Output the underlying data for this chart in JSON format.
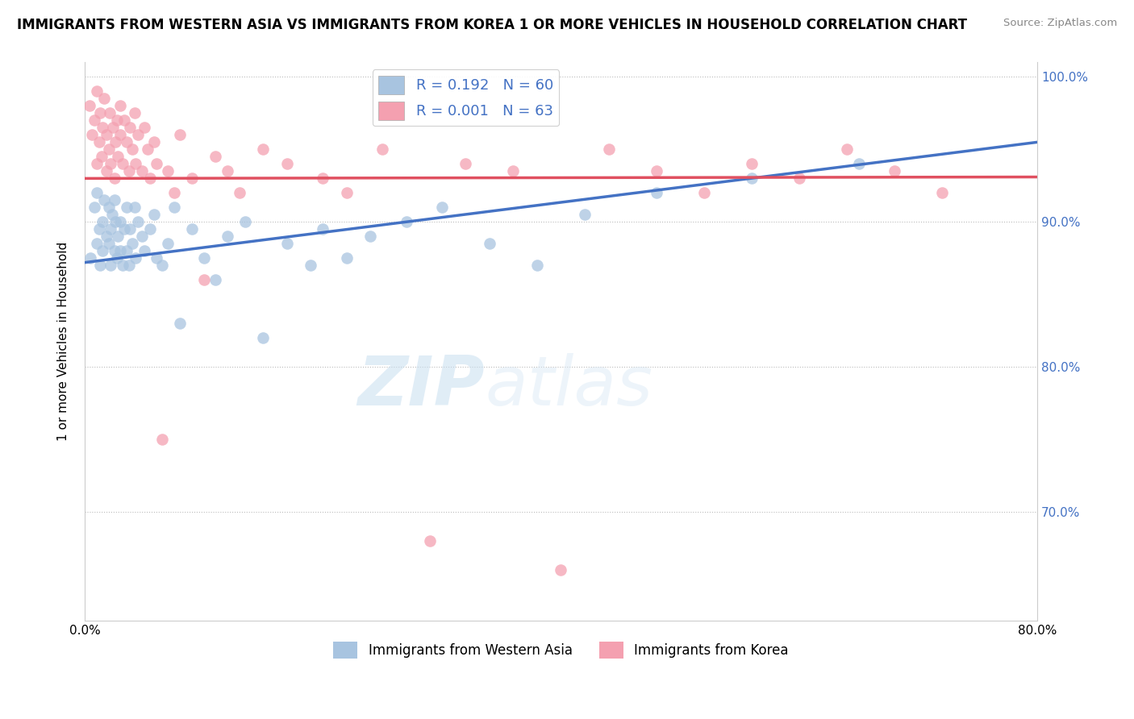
{
  "title": "IMMIGRANTS FROM WESTERN ASIA VS IMMIGRANTS FROM KOREA 1 OR MORE VEHICLES IN HOUSEHOLD CORRELATION CHART",
  "source": "Source: ZipAtlas.com",
  "ylabel": "1 or more Vehicles in Household",
  "x_min": 0.0,
  "x_max": 0.8,
  "y_min": 0.625,
  "y_max": 1.01,
  "y_ticks": [
    0.7,
    0.8,
    0.9,
    1.0
  ],
  "y_tick_labels": [
    "70.0%",
    "80.0%",
    "90.0%",
    "100.0%"
  ],
  "x_ticks": [
    0.0,
    0.1,
    0.2,
    0.3,
    0.4,
    0.5,
    0.6,
    0.7,
    0.8
  ],
  "x_tick_labels": [
    "0.0%",
    "",
    "",
    "",
    "",
    "",
    "",
    "",
    "80.0%"
  ],
  "legend_label1": "Immigrants from Western Asia",
  "legend_label2": "Immigrants from Korea",
  "R1": 0.192,
  "N1": 60,
  "R2": 0.001,
  "N2": 63,
  "color_blue": "#a8c4e0",
  "color_pink": "#f4a0b0",
  "trend_blue": "#4472c4",
  "trend_pink": "#e05060",
  "watermark_zip": "ZIP",
  "watermark_atlas": "atlas",
  "trend_blue_x0": 0.0,
  "trend_blue_y0": 0.872,
  "trend_blue_x1": 0.8,
  "trend_blue_y1": 0.955,
  "trend_pink_x0": 0.0,
  "trend_pink_y0": 0.93,
  "trend_pink_x1": 0.8,
  "trend_pink_y1": 0.931,
  "western_asia_x": [
    0.005,
    0.008,
    0.01,
    0.01,
    0.012,
    0.013,
    0.015,
    0.015,
    0.016,
    0.018,
    0.02,
    0.02,
    0.022,
    0.022,
    0.023,
    0.025,
    0.025,
    0.026,
    0.027,
    0.028,
    0.03,
    0.03,
    0.032,
    0.033,
    0.035,
    0.035,
    0.037,
    0.038,
    0.04,
    0.042,
    0.043,
    0.045,
    0.048,
    0.05,
    0.055,
    0.058,
    0.06,
    0.065,
    0.07,
    0.075,
    0.08,
    0.09,
    0.1,
    0.11,
    0.12,
    0.135,
    0.15,
    0.17,
    0.19,
    0.2,
    0.22,
    0.24,
    0.27,
    0.3,
    0.34,
    0.38,
    0.42,
    0.48,
    0.56,
    0.65
  ],
  "western_asia_y": [
    0.875,
    0.91,
    0.885,
    0.92,
    0.895,
    0.87,
    0.9,
    0.88,
    0.915,
    0.89,
    0.885,
    0.91,
    0.895,
    0.87,
    0.905,
    0.88,
    0.915,
    0.9,
    0.875,
    0.89,
    0.88,
    0.9,
    0.87,
    0.895,
    0.91,
    0.88,
    0.87,
    0.895,
    0.885,
    0.91,
    0.875,
    0.9,
    0.89,
    0.88,
    0.895,
    0.905,
    0.875,
    0.87,
    0.885,
    0.91,
    0.83,
    0.895,
    0.875,
    0.86,
    0.89,
    0.9,
    0.82,
    0.885,
    0.87,
    0.895,
    0.875,
    0.89,
    0.9,
    0.91,
    0.885,
    0.87,
    0.905,
    0.92,
    0.93,
    0.94
  ],
  "korea_x": [
    0.004,
    0.006,
    0.008,
    0.01,
    0.01,
    0.012,
    0.013,
    0.014,
    0.015,
    0.016,
    0.018,
    0.018,
    0.02,
    0.021,
    0.022,
    0.024,
    0.025,
    0.026,
    0.027,
    0.028,
    0.03,
    0.03,
    0.032,
    0.033,
    0.035,
    0.037,
    0.038,
    0.04,
    0.042,
    0.043,
    0.045,
    0.048,
    0.05,
    0.053,
    0.055,
    0.058,
    0.06,
    0.065,
    0.07,
    0.075,
    0.08,
    0.09,
    0.1,
    0.11,
    0.12,
    0.13,
    0.15,
    0.17,
    0.2,
    0.22,
    0.25,
    0.29,
    0.32,
    0.36,
    0.4,
    0.44,
    0.48,
    0.52,
    0.56,
    0.6,
    0.64,
    0.68,
    0.72
  ],
  "korea_y": [
    0.98,
    0.96,
    0.97,
    0.94,
    0.99,
    0.955,
    0.975,
    0.945,
    0.965,
    0.985,
    0.935,
    0.96,
    0.95,
    0.975,
    0.94,
    0.965,
    0.93,
    0.955,
    0.97,
    0.945,
    0.96,
    0.98,
    0.94,
    0.97,
    0.955,
    0.935,
    0.965,
    0.95,
    0.975,
    0.94,
    0.96,
    0.935,
    0.965,
    0.95,
    0.93,
    0.955,
    0.94,
    0.75,
    0.935,
    0.92,
    0.96,
    0.93,
    0.86,
    0.945,
    0.935,
    0.92,
    0.95,
    0.94,
    0.93,
    0.92,
    0.95,
    0.68,
    0.94,
    0.935,
    0.66,
    0.95,
    0.935,
    0.92,
    0.94,
    0.93,
    0.95,
    0.935,
    0.92
  ]
}
